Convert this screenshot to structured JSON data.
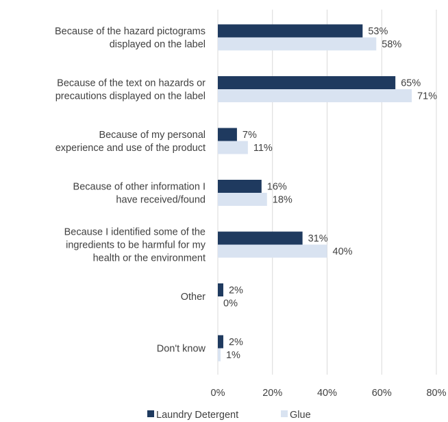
{
  "chart_data": {
    "type": "bar",
    "orientation": "horizontal",
    "categories": [
      [
        "Because of the hazard pictograms",
        "displayed on the label"
      ],
      [
        "Because of the text on hazards or",
        "precautions displayed on the label"
      ],
      [
        "Because of my personal",
        "experience and use of the product"
      ],
      [
        "Because of other information I",
        "have received/found"
      ],
      [
        "Because I identified some of the",
        "ingredients to be harmful for my",
        "health or the environment"
      ],
      [
        "Other"
      ],
      [
        "Don't know"
      ]
    ],
    "series": [
      {
        "name": "Laundry Detergent",
        "color": "#1f3a5f",
        "values": [
          53,
          65,
          7,
          16,
          31,
          2,
          2
        ],
        "labels": [
          "53%",
          "65%",
          "7%",
          "16%",
          "31%",
          "2%",
          "2%"
        ]
      },
      {
        "name": "Glue",
        "color": "#d9e3f1",
        "values": [
          58,
          71,
          11,
          18,
          40,
          0,
          1
        ],
        "labels": [
          "58%",
          "71%",
          "11%",
          "18%",
          "40%",
          "0%",
          "1%"
        ]
      }
    ],
    "xlim": [
      0,
      80
    ],
    "xticks": [
      0,
      20,
      40,
      60,
      80
    ],
    "xtick_labels": [
      "0%",
      "20%",
      "40%",
      "60%",
      "80%"
    ],
    "grid": true,
    "legend_position": "bottom"
  }
}
